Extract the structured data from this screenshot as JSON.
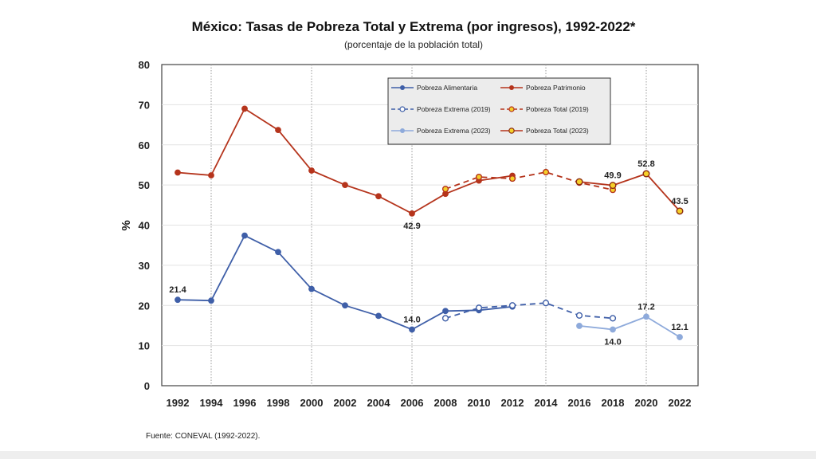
{
  "chart_data": {
    "type": "line",
    "title": "México: Tasas de Pobreza Total y Extrema (por ingresos), 1992-2022*",
    "subtitle": "(porcentaje de la población total)",
    "ylabel": "%",
    "xlabel": "",
    "ylim": [
      0,
      80
    ],
    "yticks": [
      0,
      10,
      20,
      30,
      40,
      50,
      60,
      70,
      80
    ],
    "categories": [
      1992,
      1994,
      1996,
      1998,
      2000,
      2002,
      2004,
      2006,
      2008,
      2010,
      2012,
      2014,
      2016,
      2018,
      2020,
      2022
    ],
    "grid": "vertical dotted lines at 1994, 2000, 2006, 2014, 2020",
    "legend_position": "top-center inside plot",
    "source": "Fuente: CONEVAL (1992-2022).",
    "colors": {
      "alimentaria": "#3f5fa8",
      "patrimonio": "#b5341c",
      "extrema2023": "#8eaadb",
      "total_fill": "#f5d02a",
      "total_edge": "#8b2a0f"
    },
    "series": [
      {
        "name": "Pobreza Alimentaria",
        "style": "solid",
        "marker": "dot",
        "color": "#3f5fa8",
        "x": [
          1992,
          1994,
          1996,
          1998,
          2000,
          2002,
          2004,
          2006,
          2008,
          2010,
          2012
        ],
        "y": [
          21.4,
          21.2,
          37.4,
          33.3,
          24.1,
          20.0,
          17.4,
          14.0,
          18.6,
          18.8,
          19.7
        ]
      },
      {
        "name": "Pobreza Patrimonio",
        "style": "solid",
        "marker": "dot",
        "color": "#b5341c",
        "x": [
          1992,
          1994,
          1996,
          1998,
          2000,
          2002,
          2004,
          2006,
          2008,
          2010,
          2012
        ],
        "y": [
          53.1,
          52.4,
          69.0,
          63.7,
          53.6,
          50.0,
          47.2,
          42.9,
          47.8,
          51.1,
          52.3
        ]
      },
      {
        "name": "Pobreza Extrema (2019)",
        "style": "dashed",
        "marker": "hollow",
        "color": "#3f5fa8",
        "x": [
          2008,
          2010,
          2012,
          2014,
          2016,
          2018
        ],
        "y": [
          16.8,
          19.4,
          20.0,
          20.6,
          17.5,
          16.8
        ]
      },
      {
        "name": "Pobreza Total (2019)",
        "style": "dashed",
        "marker": "hollow",
        "color": "#b5341c",
        "x": [
          2008,
          2010,
          2012,
          2014,
          2016,
          2018
        ],
        "y": [
          49.0,
          52.0,
          51.6,
          53.2,
          50.6,
          48.8
        ]
      },
      {
        "name": "Pobreza Extrema (2023)",
        "style": "solid",
        "marker": "dot",
        "color": "#8eaadb",
        "x": [
          2016,
          2018,
          2020,
          2022
        ],
        "y": [
          14.9,
          14.0,
          17.2,
          12.1
        ]
      },
      {
        "name": "Pobreza Total (2023)",
        "style": "solid",
        "marker": "yellow",
        "color": "#b5341c",
        "x": [
          2016,
          2018,
          2020,
          2022
        ],
        "y": [
          50.8,
          49.9,
          52.8,
          43.5
        ]
      }
    ],
    "annotations": [
      {
        "text": "21.4",
        "x": 1992,
        "y": 21.4,
        "pos": "above"
      },
      {
        "text": "14.0",
        "x": 2006,
        "y": 14.0,
        "pos": "above"
      },
      {
        "text": "42.9",
        "x": 2006,
        "y": 42.9,
        "pos": "below"
      },
      {
        "text": "49.9",
        "x": 2018,
        "y": 49.9,
        "pos": "above"
      },
      {
        "text": "52.8",
        "x": 2020,
        "y": 52.8,
        "pos": "above"
      },
      {
        "text": "43.5",
        "x": 2022,
        "y": 43.5,
        "pos": "above"
      },
      {
        "text": "14.0",
        "x": 2018,
        "y": 14.0,
        "pos": "below"
      },
      {
        "text": "17.2",
        "x": 2020,
        "y": 17.2,
        "pos": "above"
      },
      {
        "text": "12.1",
        "x": 2022,
        "y": 12.1,
        "pos": "above"
      }
    ]
  }
}
